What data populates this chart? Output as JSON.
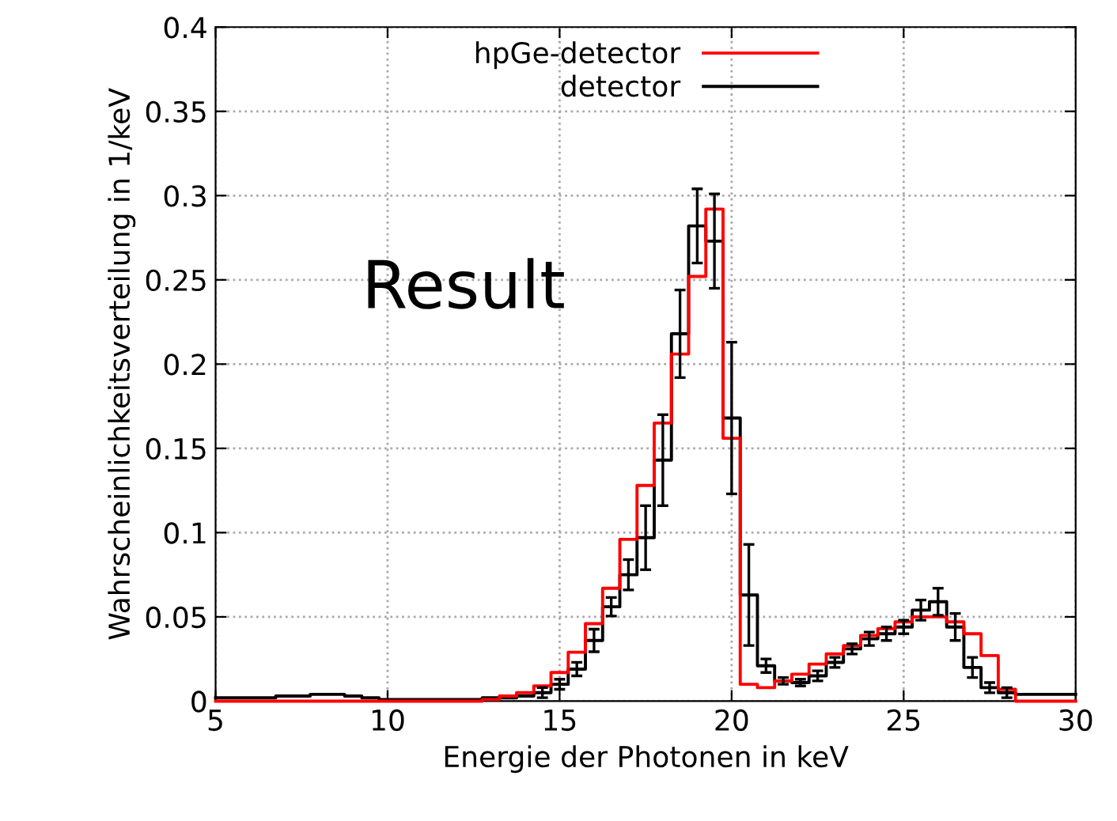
{
  "chart_data": {
    "type": "step",
    "xlabel": "Energie der Photonen in keV",
    "ylabel": "Wahrscheinlichkeitsverteilung in 1/keV",
    "x": [
      5,
      5.5,
      6,
      6.5,
      7,
      7.5,
      8,
      8.5,
      9,
      9.5,
      10,
      10.5,
      11,
      11.5,
      12,
      12.5,
      13,
      13.5,
      14,
      14.5,
      15,
      15.5,
      16,
      16.5,
      17,
      17.5,
      18,
      18.5,
      19,
      19.5,
      20,
      20.5,
      21,
      21.5,
      22,
      22.5,
      23,
      23.5,
      24,
      24.5,
      25,
      25.5,
      26,
      26.5,
      27,
      27.5,
      28,
      28.5,
      29,
      29.5,
      30
    ],
    "series": [
      {
        "name": "hpGe-detector",
        "color": "#ff0000",
        "values": [
          0,
          0,
          0,
          0,
          0,
          0,
          0,
          0,
          0,
          0,
          0,
          0,
          0,
          0,
          0,
          0,
          0.001,
          0.003,
          0.005,
          0.009,
          0.017,
          0.029,
          0.046,
          0.067,
          0.096,
          0.128,
          0.165,
          0.206,
          0.252,
          0.292,
          0.156,
          0.01,
          0.008,
          0.012,
          0.016,
          0.022,
          0.028,
          0.033,
          0.039,
          0.043,
          0.047,
          0.05,
          0.05,
          0.047,
          0.04,
          0.027,
          0.007,
          0,
          0,
          0,
          0
        ]
      },
      {
        "name": "detector",
        "color": "#000000",
        "values": [
          0.002,
          0.002,
          0.002,
          0.002,
          0.003,
          0.003,
          0.004,
          0.004,
          0.003,
          0.002,
          0.001,
          0.001,
          0.001,
          0.001,
          0.001,
          0.001,
          0.002,
          0.002,
          0.003,
          0.005,
          0.01,
          0.019,
          0.036,
          0.056,
          0.075,
          0.097,
          0.143,
          0.218,
          0.282,
          0.273,
          0.168,
          0.063,
          0.021,
          0.012,
          0.011,
          0.015,
          0.023,
          0.031,
          0.037,
          0.04,
          0.044,
          0.054,
          0.059,
          0.044,
          0.02,
          0.008,
          0.005,
          0.004,
          0.004,
          0.004,
          0.004
        ],
        "errors": [
          null,
          null,
          null,
          null,
          null,
          null,
          null,
          null,
          null,
          null,
          null,
          null,
          null,
          null,
          null,
          null,
          null,
          null,
          null,
          0.003,
          0.003,
          0.004,
          0.0067,
          0.0055,
          0.009,
          0.019,
          0.027,
          0.026,
          0.022,
          0.028,
          0.045,
          0.03,
          0.004,
          0.002,
          0.002,
          0.003,
          0.003,
          0.003,
          0.004,
          0.004,
          0.004,
          0.006,
          0.008,
          0.008,
          0.006,
          0.003,
          0.003,
          null,
          null,
          null,
          null
        ]
      }
    ],
    "xlim": [
      5,
      30
    ],
    "xticks": [
      5,
      10,
      15,
      20,
      25,
      30
    ],
    "ylim": [
      0,
      0.4
    ],
    "yticks": [
      0,
      0.05,
      0.1,
      0.15,
      0.2,
      0.25,
      0.3,
      0.35,
      0.4
    ],
    "grid": true,
    "legend": "top",
    "line_style": "solid",
    "annotations": [
      "Result"
    ]
  }
}
